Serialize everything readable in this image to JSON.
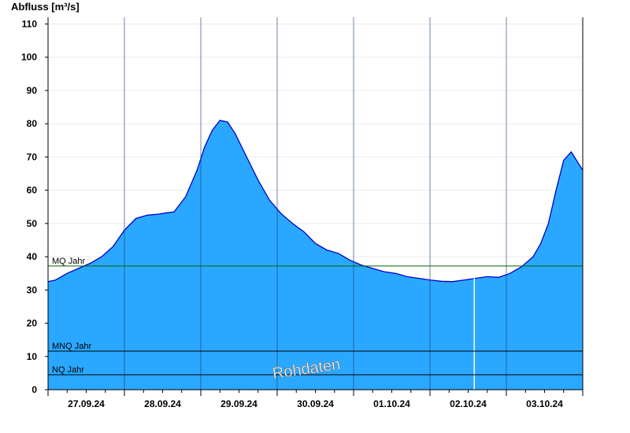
{
  "chart_data": {
    "type": "area",
    "ylabel": "Abfluss [m³/s]",
    "ylim": [
      0,
      112
    ],
    "yticks": [
      0,
      10,
      20,
      30,
      40,
      50,
      60,
      70,
      80,
      90,
      100,
      110
    ],
    "xlim": [
      0,
      7
    ],
    "x_unit": "days",
    "x_tick_labels": [
      "27.09.24",
      "28.09.24",
      "29.09.24",
      "30.09.24",
      "01.10.24",
      "02.10.24",
      "03.10.24"
    ],
    "grid": true,
    "fill_color": "#2aa8ff",
    "line_color": "#0000cc",
    "series": [
      {
        "x": [
          0,
          0.1,
          0.25,
          0.4,
          0.55,
          0.7,
          0.85,
          1.0,
          1.15,
          1.3,
          1.45,
          1.55,
          1.65,
          1.8,
          1.95,
          2.05,
          2.15,
          2.25,
          2.35,
          2.45,
          2.6,
          2.75,
          2.9,
          3.05,
          3.2,
          3.35,
          3.5,
          3.65,
          3.8,
          3.95,
          4.1,
          4.25,
          4.4,
          4.55,
          4.7,
          4.85,
          5.0,
          5.15,
          5.3,
          5.45,
          5.6,
          5.75,
          5.9,
          6.05,
          6.2,
          6.35,
          6.45,
          6.55,
          6.65,
          6.75,
          6.85,
          7.0
        ],
        "values": [
          32.5,
          33,
          35,
          36.5,
          38,
          40,
          43,
          48,
          51.5,
          52.5,
          52.8,
          53.2,
          53.5,
          58,
          66,
          73,
          78,
          81,
          80.5,
          77,
          70,
          63,
          57,
          53,
          50,
          47.5,
          44,
          42,
          41,
          39,
          37.5,
          36.5,
          35.5,
          35,
          34,
          33.5,
          33,
          32.6,
          32.5,
          33,
          33.5,
          34,
          33.8,
          35,
          37,
          40,
          44,
          50,
          60,
          69,
          71.5,
          66
        ]
      }
    ],
    "reference_lines": [
      {
        "name": "MQ Jahr",
        "value": 37.2,
        "color": "#006400"
      },
      {
        "name": "MNQ Jahr",
        "value": 11.6,
        "color": "#000000"
      },
      {
        "name": "NQ Jahr",
        "value": 4.5,
        "color": "#000000"
      }
    ],
    "marker_line_x": 5.58,
    "watermark": "Rohdaten"
  }
}
